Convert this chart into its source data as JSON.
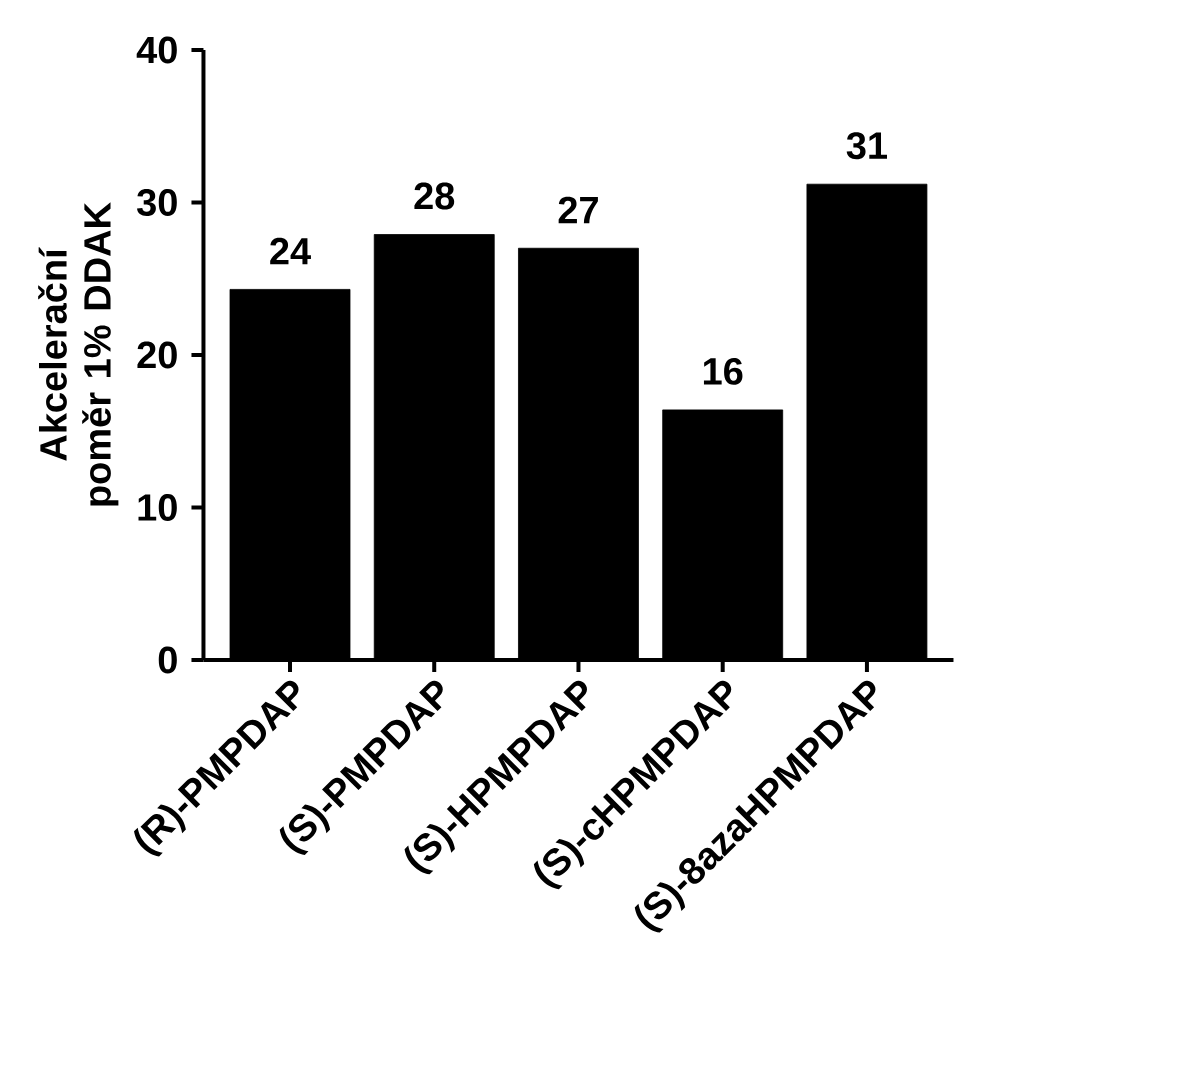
{
  "chart_data": {
    "type": "bar",
    "ylabel": "Akcelerační poměr 1% DDAK",
    "categories": [
      "(R)-PMPDAP",
      "(S)-PMPDAP",
      "(S)-HPMPDAP",
      "(S)-cHPMPDAP",
      "(S)-8azaHPMPDAP"
    ],
    "values": [
      24.3,
      27.9,
      27.0,
      16.4,
      31.2
    ],
    "value_labels": [
      "24",
      "28",
      "27",
      "16",
      "31"
    ],
    "color": "#000000",
    "ylim": [
      0,
      40
    ],
    "yticks": [
      0,
      10,
      20,
      30,
      40
    ]
  }
}
